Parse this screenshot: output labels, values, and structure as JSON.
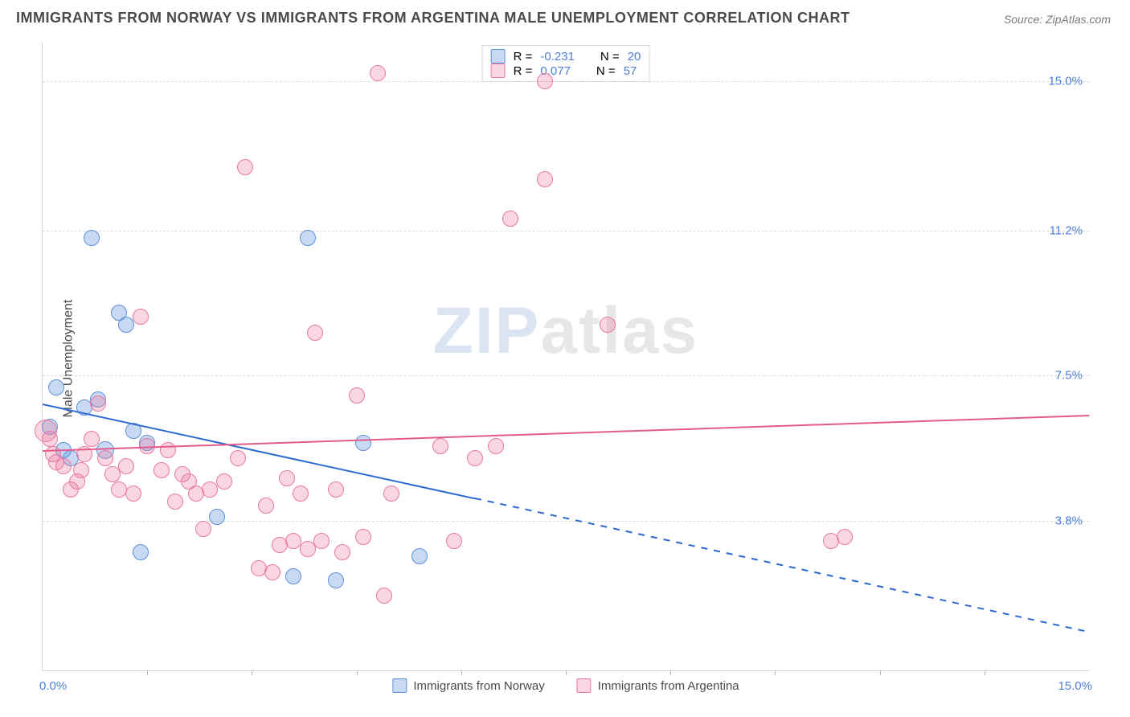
{
  "title": "IMMIGRANTS FROM NORWAY VS IMMIGRANTS FROM ARGENTINA MALE UNEMPLOYMENT CORRELATION CHART",
  "source": "Source: ZipAtlas.com",
  "ylabel": "Male Unemployment",
  "watermark_zip": "ZIP",
  "watermark_atlas": "atlas",
  "chart": {
    "type": "scatter-with-trendlines",
    "xlim": [
      0,
      15
    ],
    "ylim": [
      0,
      16
    ],
    "x_axis_label_min": "0.0%",
    "x_axis_label_max": "15.0%",
    "y_grid": [
      {
        "v": 3.8,
        "label": "3.8%"
      },
      {
        "v": 7.5,
        "label": "7.5%"
      },
      {
        "v": 11.2,
        "label": "11.2%"
      },
      {
        "v": 15.0,
        "label": "15.0%"
      }
    ],
    "x_ticks": [
      1.5,
      3.0,
      4.5,
      6.0,
      7.5,
      9.0,
      10.5,
      12.0,
      13.5
    ],
    "colors": {
      "blue_fill": "#6094dc",
      "blue_stroke": "#5e90d8",
      "blue_line": "#2e6bd1",
      "pink_fill": "#ea78a0",
      "pink_stroke": "#e879a1",
      "pink_line": "#e45a8c",
      "grid": "#dcdcdc",
      "axis": "#d8d8d8",
      "text": "#4a4a4a",
      "value": "#4f7ed9",
      "bg": "#ffffff"
    },
    "marker_radius": 10,
    "series": [
      {
        "key": "norway",
        "label": "Immigrants from Norway",
        "color": "blue",
        "R": "-0.231",
        "N": "20",
        "trend": {
          "x1": 0,
          "y1": 6.8,
          "x2_solid": 6.2,
          "y2_solid": 4.4,
          "x2": 15,
          "y2": 1.0
        },
        "points": [
          {
            "x": 0.1,
            "y": 6.2
          },
          {
            "x": 0.2,
            "y": 7.2
          },
          {
            "x": 0.3,
            "y": 5.6
          },
          {
            "x": 0.4,
            "y": 5.4
          },
          {
            "x": 0.6,
            "y": 6.7
          },
          {
            "x": 0.7,
            "y": 11.0
          },
          {
            "x": 0.8,
            "y": 6.9
          },
          {
            "x": 0.9,
            "y": 5.6,
            "r": 11
          },
          {
            "x": 1.1,
            "y": 9.1
          },
          {
            "x": 1.2,
            "y": 8.8
          },
          {
            "x": 1.3,
            "y": 6.1
          },
          {
            "x": 1.4,
            "y": 3.0
          },
          {
            "x": 1.5,
            "y": 5.8
          },
          {
            "x": 2.5,
            "y": 3.9
          },
          {
            "x": 3.6,
            "y": 2.4
          },
          {
            "x": 3.8,
            "y": 11.0
          },
          {
            "x": 4.2,
            "y": 2.3
          },
          {
            "x": 4.6,
            "y": 5.8
          },
          {
            "x": 5.4,
            "y": 2.9
          }
        ]
      },
      {
        "key": "argentina",
        "label": "Immigrants from Argentina",
        "color": "pink",
        "R": "0.077",
        "N": "57",
        "trend": {
          "x1": 0,
          "y1": 5.6,
          "x2_solid": 15,
          "y2_solid": 6.5,
          "x2": 15,
          "y2": 6.5
        },
        "points": [
          {
            "x": 0.05,
            "y": 6.1,
            "r": 14
          },
          {
            "x": 0.1,
            "y": 5.9
          },
          {
            "x": 0.15,
            "y": 5.5
          },
          {
            "x": 0.2,
            "y": 5.3
          },
          {
            "x": 0.3,
            "y": 5.2
          },
          {
            "x": 0.4,
            "y": 4.6
          },
          {
            "x": 0.5,
            "y": 4.8
          },
          {
            "x": 0.55,
            "y": 5.1
          },
          {
            "x": 0.6,
            "y": 5.5
          },
          {
            "x": 0.7,
            "y": 5.9
          },
          {
            "x": 0.8,
            "y": 6.8
          },
          {
            "x": 0.9,
            "y": 5.4
          },
          {
            "x": 1.0,
            "y": 5.0
          },
          {
            "x": 1.1,
            "y": 4.6
          },
          {
            "x": 1.2,
            "y": 5.2
          },
          {
            "x": 1.3,
            "y": 4.5
          },
          {
            "x": 1.4,
            "y": 9.0
          },
          {
            "x": 1.5,
            "y": 5.7
          },
          {
            "x": 1.7,
            "y": 5.1
          },
          {
            "x": 1.8,
            "y": 5.6
          },
          {
            "x": 1.9,
            "y": 4.3
          },
          {
            "x": 2.0,
            "y": 5.0
          },
          {
            "x": 2.1,
            "y": 4.8
          },
          {
            "x": 2.2,
            "y": 4.5
          },
          {
            "x": 2.3,
            "y": 3.6
          },
          {
            "x": 2.4,
            "y": 4.6
          },
          {
            "x": 2.6,
            "y": 4.8
          },
          {
            "x": 2.8,
            "y": 5.4
          },
          {
            "x": 2.9,
            "y": 12.8
          },
          {
            "x": 3.1,
            "y": 2.6
          },
          {
            "x": 3.2,
            "y": 4.2
          },
          {
            "x": 3.3,
            "y": 2.5
          },
          {
            "x": 3.4,
            "y": 3.2
          },
          {
            "x": 3.5,
            "y": 4.9
          },
          {
            "x": 3.6,
            "y": 3.3
          },
          {
            "x": 3.7,
            "y": 4.5
          },
          {
            "x": 3.8,
            "y": 3.1
          },
          {
            "x": 3.9,
            "y": 8.6
          },
          {
            "x": 4.0,
            "y": 3.3
          },
          {
            "x": 4.2,
            "y": 4.6
          },
          {
            "x": 4.3,
            "y": 3.0
          },
          {
            "x": 4.5,
            "y": 7.0
          },
          {
            "x": 4.6,
            "y": 3.4
          },
          {
            "x": 4.8,
            "y": 15.2
          },
          {
            "x": 4.9,
            "y": 1.9
          },
          {
            "x": 5.0,
            "y": 4.5
          },
          {
            "x": 5.7,
            "y": 5.7
          },
          {
            "x": 5.9,
            "y": 3.3
          },
          {
            "x": 6.2,
            "y": 5.4
          },
          {
            "x": 6.5,
            "y": 5.7
          },
          {
            "x": 6.7,
            "y": 11.5
          },
          {
            "x": 7.2,
            "y": 12.5
          },
          {
            "x": 7.2,
            "y": 15.0
          },
          {
            "x": 8.1,
            "y": 8.8
          },
          {
            "x": 11.3,
            "y": 3.3
          },
          {
            "x": 11.5,
            "y": 3.4
          }
        ]
      }
    ],
    "legend_top_template": {
      "R_label": "R =",
      "N_label": "N ="
    }
  }
}
